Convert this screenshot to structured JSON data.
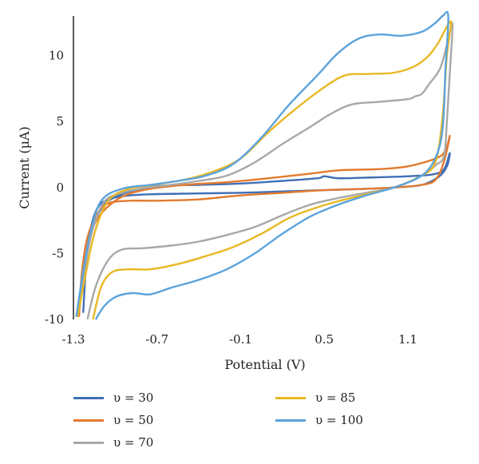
{
  "chart_data": {
    "type": "line",
    "xlabel": "Potential (V)",
    "ylabel": "Current (μA)",
    "xlim": [
      -1.3,
      1.45
    ],
    "ylim": [
      -10,
      13
    ],
    "x_ticks": [
      "-1.3",
      "-0.7",
      "-0.1",
      "0.5",
      "1.1"
    ],
    "y_ticks": [
      "10",
      "5",
      "0",
      "-5",
      "-10"
    ],
    "grid": false,
    "legend_position": "bottom",
    "series": [
      {
        "name": "υ = 30",
        "color": "#3f6fb5",
        "points": [
          [
            -1.23,
            -9.5
          ],
          [
            -1.21,
            -6.0
          ],
          [
            -1.18,
            -3.3
          ],
          [
            -1.13,
            -1.6
          ],
          [
            -1.05,
            -0.9
          ],
          [
            -0.9,
            -0.6
          ],
          [
            -0.7,
            -0.5
          ],
          [
            -0.4,
            -0.45
          ],
          [
            -0.1,
            -0.4
          ],
          [
            0.2,
            -0.3
          ],
          [
            0.5,
            -0.2
          ],
          [
            0.8,
            -0.1
          ],
          [
            1.0,
            0.0
          ],
          [
            1.2,
            0.2
          ],
          [
            1.32,
            0.8
          ],
          [
            1.38,
            1.6
          ],
          [
            1.4,
            2.6
          ],
          [
            1.36,
            1.4
          ],
          [
            1.28,
            1.0
          ],
          [
            1.1,
            0.85
          ],
          [
            0.8,
            0.75
          ],
          [
            0.6,
            0.7
          ],
          [
            0.5,
            0.85
          ],
          [
            0.45,
            0.7
          ],
          [
            0.2,
            0.5
          ],
          [
            -0.1,
            0.3
          ],
          [
            -0.4,
            0.2
          ],
          [
            -0.7,
            0.1
          ],
          [
            -0.95,
            -0.5
          ],
          [
            -1.1,
            -1.6
          ],
          [
            -1.2,
            -4.5
          ],
          [
            -1.26,
            -9.5
          ]
        ]
      },
      {
        "name": "υ = 50",
        "color": "#e27a2e",
        "points": [
          [
            -1.26,
            -9.8
          ],
          [
            -1.24,
            -6.5
          ],
          [
            -1.2,
            -3.8
          ],
          [
            -1.13,
            -2.0
          ],
          [
            -1.05,
            -1.2
          ],
          [
            -0.9,
            -1.0
          ],
          [
            -0.7,
            -1.0
          ],
          [
            -0.4,
            -0.9
          ],
          [
            -0.1,
            -0.6
          ],
          [
            0.2,
            -0.4
          ],
          [
            0.5,
            -0.2
          ],
          [
            0.8,
            -0.1
          ],
          [
            1.0,
            0.0
          ],
          [
            1.2,
            0.2
          ],
          [
            1.3,
            0.6
          ],
          [
            1.36,
            2.0
          ],
          [
            1.4,
            3.9
          ],
          [
            1.37,
            2.8
          ],
          [
            1.3,
            2.2
          ],
          [
            1.1,
            1.6
          ],
          [
            0.9,
            1.4
          ],
          [
            0.6,
            1.3
          ],
          [
            0.4,
            1.05
          ],
          [
            0.1,
            0.7
          ],
          [
            -0.2,
            0.4
          ],
          [
            -0.5,
            0.2
          ],
          [
            -0.8,
            -0.2
          ],
          [
            -1.0,
            -1.0
          ],
          [
            -1.15,
            -2.8
          ],
          [
            -1.22,
            -6.0
          ],
          [
            -1.27,
            -9.8
          ]
        ]
      },
      {
        "name": "υ = 70",
        "color": "#a8a8a8",
        "points": [
          [
            -1.2,
            -10.0
          ],
          [
            -1.14,
            -7.5
          ],
          [
            -1.05,
            -5.5
          ],
          [
            -0.95,
            -4.7
          ],
          [
            -0.8,
            -4.6
          ],
          [
            -0.6,
            -4.4
          ],
          [
            -0.4,
            -4.1
          ],
          [
            -0.2,
            -3.6
          ],
          [
            0.0,
            -3.0
          ],
          [
            0.2,
            -2.1
          ],
          [
            0.4,
            -1.3
          ],
          [
            0.6,
            -0.8
          ],
          [
            0.8,
            -0.4
          ],
          [
            1.0,
            0.0
          ],
          [
            1.2,
            0.9
          ],
          [
            1.3,
            1.7
          ],
          [
            1.36,
            2.4
          ],
          [
            1.38,
            5.0
          ],
          [
            1.4,
            8.5
          ],
          [
            1.42,
            12.4
          ],
          [
            1.38,
            10.8
          ],
          [
            1.33,
            9.0
          ],
          [
            1.25,
            7.8
          ],
          [
            1.2,
            7.1
          ],
          [
            1.15,
            6.9
          ],
          [
            1.1,
            6.7
          ],
          [
            0.9,
            6.5
          ],
          [
            0.7,
            6.3
          ],
          [
            0.55,
            5.6
          ],
          [
            0.4,
            4.6
          ],
          [
            0.2,
            3.3
          ],
          [
            0.0,
            1.9
          ],
          [
            -0.2,
            0.9
          ],
          [
            -0.4,
            0.5
          ],
          [
            -0.6,
            0.2
          ],
          [
            -0.8,
            -0.05
          ],
          [
            -0.95,
            -0.4
          ],
          [
            -1.08,
            -1.1
          ],
          [
            -1.17,
            -3.5
          ],
          [
            -1.23,
            -7.0
          ],
          [
            -1.28,
            -9.8
          ]
        ]
      },
      {
        "name": "υ = 85",
        "color": "#e8b824",
        "points": [
          [
            -1.16,
            -10.0
          ],
          [
            -1.1,
            -7.5
          ],
          [
            -1.02,
            -6.4
          ],
          [
            -0.9,
            -6.2
          ],
          [
            -0.75,
            -6.2
          ],
          [
            -0.55,
            -5.8
          ],
          [
            -0.35,
            -5.2
          ],
          [
            -0.15,
            -4.5
          ],
          [
            0.05,
            -3.5
          ],
          [
            0.25,
            -2.3
          ],
          [
            0.45,
            -1.5
          ],
          [
            0.65,
            -0.9
          ],
          [
            0.85,
            -0.4
          ],
          [
            1.0,
            0.0
          ],
          [
            1.2,
            0.9
          ],
          [
            1.3,
            2.0
          ],
          [
            1.35,
            5.5
          ],
          [
            1.38,
            10.0
          ],
          [
            1.41,
            12.5
          ],
          [
            1.37,
            12.0
          ],
          [
            1.32,
            11.0
          ],
          [
            1.25,
            10.0
          ],
          [
            1.15,
            9.2
          ],
          [
            1.0,
            8.7
          ],
          [
            0.8,
            8.6
          ],
          [
            0.65,
            8.5
          ],
          [
            0.5,
            7.6
          ],
          [
            0.3,
            6.0
          ],
          [
            0.1,
            4.2
          ],
          [
            -0.1,
            2.2
          ],
          [
            -0.3,
            1.2
          ],
          [
            -0.5,
            0.6
          ],
          [
            -0.7,
            0.25
          ],
          [
            -0.9,
            -0.1
          ],
          [
            -1.05,
            -1.0
          ],
          [
            -1.15,
            -3.5
          ],
          [
            -1.22,
            -7.0
          ],
          [
            -1.27,
            -9.8
          ]
        ]
      },
      {
        "name": "υ = 100",
        "color": "#5ba3dc",
        "points": [
          [
            -1.14,
            -10.0
          ],
          [
            -1.08,
            -9.0
          ],
          [
            -1.0,
            -8.3
          ],
          [
            -0.88,
            -8.0
          ],
          [
            -0.75,
            -8.1
          ],
          [
            -0.6,
            -7.6
          ],
          [
            -0.4,
            -7.0
          ],
          [
            -0.2,
            -6.2
          ],
          [
            0.0,
            -5.0
          ],
          [
            0.2,
            -3.5
          ],
          [
            0.4,
            -2.2
          ],
          [
            0.6,
            -1.3
          ],
          [
            0.8,
            -0.6
          ],
          [
            1.0,
            0.0
          ],
          [
            1.2,
            0.9
          ],
          [
            1.3,
            2.3
          ],
          [
            1.35,
            4.5
          ],
          [
            1.37,
            9.0
          ],
          [
            1.39,
            13.0
          ],
          [
            1.35,
            13.0
          ],
          [
            1.3,
            12.5
          ],
          [
            1.2,
            11.8
          ],
          [
            1.05,
            11.5
          ],
          [
            0.9,
            11.6
          ],
          [
            0.75,
            11.3
          ],
          [
            0.6,
            10.2
          ],
          [
            0.45,
            8.5
          ],
          [
            0.25,
            6.3
          ],
          [
            0.05,
            3.8
          ],
          [
            -0.15,
            1.8
          ],
          [
            -0.35,
            0.9
          ],
          [
            -0.55,
            0.5
          ],
          [
            -0.75,
            0.2
          ],
          [
            -0.95,
            -0.1
          ],
          [
            -1.1,
            -1.0
          ],
          [
            -1.18,
            -3.5
          ],
          [
            -1.24,
            -7.0
          ],
          [
            -1.28,
            -9.8
          ]
        ]
      }
    ]
  }
}
